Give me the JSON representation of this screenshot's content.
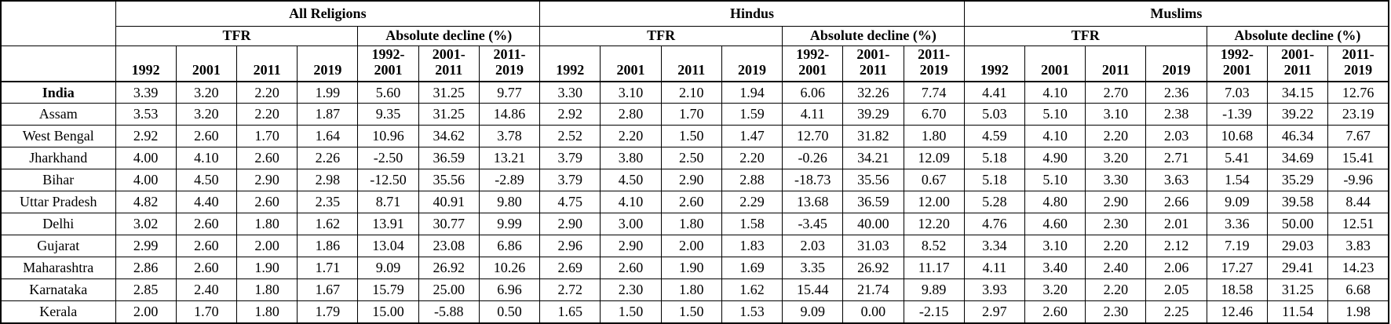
{
  "table": {
    "corner_label": "",
    "groups": [
      {
        "key": "all-religions",
        "label": "All Religions",
        "tfr_label": "TFR",
        "decline_label": "Absolute decline (%)"
      },
      {
        "key": "hindus",
        "label": "Hindus",
        "tfr_label": "TFR",
        "decline_label": "Absolute decline (%)"
      },
      {
        "key": "muslims",
        "label": "Muslims",
        "tfr_label": "TFR",
        "decline_label": "Absolute decline (%)"
      }
    ],
    "tfr_years": [
      "1992",
      "2001",
      "2011",
      "2019"
    ],
    "decline_periods": [
      "1992-\n2001",
      "2001-\n2011",
      "2011-\n2019"
    ],
    "rows": [
      {
        "name": "India",
        "bold": true,
        "values": [
          "3.39",
          "3.20",
          "2.20",
          "1.99",
          "5.60",
          "31.25",
          "9.77",
          "3.30",
          "3.10",
          "2.10",
          "1.94",
          "6.06",
          "32.26",
          "7.74",
          "4.41",
          "4.10",
          "2.70",
          "2.36",
          "7.03",
          "34.15",
          "12.76"
        ]
      },
      {
        "name": "Assam",
        "bold": false,
        "values": [
          "3.53",
          "3.20",
          "2.20",
          "1.87",
          "9.35",
          "31.25",
          "14.86",
          "2.92",
          "2.80",
          "1.70",
          "1.59",
          "4.11",
          "39.29",
          "6.70",
          "5.03",
          "5.10",
          "3.10",
          "2.38",
          "-1.39",
          "39.22",
          "23.19"
        ]
      },
      {
        "name": "West Bengal",
        "bold": false,
        "values": [
          "2.92",
          "2.60",
          "1.70",
          "1.64",
          "10.96",
          "34.62",
          "3.78",
          "2.52",
          "2.20",
          "1.50",
          "1.47",
          "12.70",
          "31.82",
          "1.80",
          "4.59",
          "4.10",
          "2.20",
          "2.03",
          "10.68",
          "46.34",
          "7.67"
        ]
      },
      {
        "name": "Jharkhand",
        "bold": false,
        "values": [
          "4.00",
          "4.10",
          "2.60",
          "2.26",
          "-2.50",
          "36.59",
          "13.21",
          "3.79",
          "3.80",
          "2.50",
          "2.20",
          "-0.26",
          "34.21",
          "12.09",
          "5.18",
          "4.90",
          "3.20",
          "2.71",
          "5.41",
          "34.69",
          "15.41"
        ]
      },
      {
        "name": "Bihar",
        "bold": false,
        "values": [
          "4.00",
          "4.50",
          "2.90",
          "2.98",
          "-12.50",
          "35.56",
          "-2.89",
          "3.79",
          "4.50",
          "2.90",
          "2.88",
          "-18.73",
          "35.56",
          "0.67",
          "5.18",
          "5.10",
          "3.30",
          "3.63",
          "1.54",
          "35.29",
          "-9.96"
        ]
      },
      {
        "name": "Uttar Pradesh",
        "bold": false,
        "values": [
          "4.82",
          "4.40",
          "2.60",
          "2.35",
          "8.71",
          "40.91",
          "9.80",
          "4.75",
          "4.10",
          "2.60",
          "2.29",
          "13.68",
          "36.59",
          "12.00",
          "5.28",
          "4.80",
          "2.90",
          "2.66",
          "9.09",
          "39.58",
          "8.44"
        ]
      },
      {
        "name": "Delhi",
        "bold": false,
        "values": [
          "3.02",
          "2.60",
          "1.80",
          "1.62",
          "13.91",
          "30.77",
          "9.99",
          "2.90",
          "3.00",
          "1.80",
          "1.58",
          "-3.45",
          "40.00",
          "12.20",
          "4.76",
          "4.60",
          "2.30",
          "2.01",
          "3.36",
          "50.00",
          "12.51"
        ]
      },
      {
        "name": "Gujarat",
        "bold": false,
        "values": [
          "2.99",
          "2.60",
          "2.00",
          "1.86",
          "13.04",
          "23.08",
          "6.86",
          "2.96",
          "2.90",
          "2.00",
          "1.83",
          "2.03",
          "31.03",
          "8.52",
          "3.34",
          "3.10",
          "2.20",
          "2.12",
          "7.19",
          "29.03",
          "3.83"
        ]
      },
      {
        "name": "Maharashtra",
        "bold": false,
        "values": [
          "2.86",
          "2.60",
          "1.90",
          "1.71",
          "9.09",
          "26.92",
          "10.26",
          "2.69",
          "2.60",
          "1.90",
          "1.69",
          "3.35",
          "26.92",
          "11.17",
          "4.11",
          "3.40",
          "2.40",
          "2.06",
          "17.27",
          "29.41",
          "14.23"
        ]
      },
      {
        "name": "Karnataka",
        "bold": false,
        "values": [
          "2.85",
          "2.40",
          "1.80",
          "1.67",
          "15.79",
          "25.00",
          "6.96",
          "2.72",
          "2.30",
          "1.80",
          "1.62",
          "15.44",
          "21.74",
          "9.89",
          "3.93",
          "3.20",
          "2.20",
          "2.05",
          "18.58",
          "31.25",
          "6.68"
        ]
      },
      {
        "name": "Kerala",
        "bold": false,
        "values": [
          "2.00",
          "1.70",
          "1.80",
          "1.79",
          "15.00",
          "-5.88",
          "0.50",
          "1.65",
          "1.50",
          "1.50",
          "1.53",
          "9.09",
          "0.00",
          "-2.15",
          "2.97",
          "2.60",
          "2.30",
          "2.25",
          "12.46",
          "11.54",
          "1.98"
        ]
      }
    ]
  }
}
